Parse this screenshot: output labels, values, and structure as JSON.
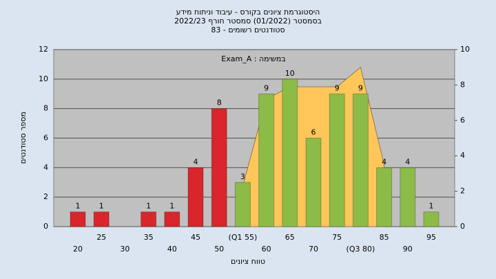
{
  "chart_data": {
    "type": "bar",
    "title": [
      "היסטוגרמת ציונים בקורס - עיבוד וניתוח מידע",
      "בסמסטר (01/2022)  סמסטר חורף 2022/23",
      "סטודנטים רשומים - 83"
    ],
    "annotation": "במשימה : Exam_A",
    "x_label": "טווח ציונים",
    "y_label": "מספר סטודנטים",
    "categories": [
      "20",
      "25",
      "30",
      "35",
      "40",
      "45",
      "50",
      "(Q1 55)",
      "60",
      "65",
      "70",
      "75",
      "(Q3 80)",
      "85",
      "90",
      "95"
    ],
    "values": [
      1,
      1,
      0,
      1,
      1,
      4,
      8,
      3,
      9,
      10,
      6,
      9,
      9,
      4,
      4,
      1
    ],
    "value_labels": [
      "1",
      "1",
      null,
      "1",
      "1",
      "4",
      "8",
      "3",
      "9",
      "10",
      "6",
      "9",
      "9",
      "4",
      "4",
      "1"
    ],
    "colors": [
      "#d8262c",
      "#d8262c",
      "#d8262c",
      "#d8262c",
      "#d8262c",
      "#d8262c",
      "#d8262c",
      "#8cbb48",
      "#8cbb48",
      "#8cbb48",
      "#8cbb48",
      "#8cbb48",
      "#8cbb48",
      "#8cbb48",
      "#8cbb48",
      "#8cbb48"
    ],
    "area": {
      "color": "#ffc65a",
      "axis": "y2",
      "values": [
        null,
        null,
        null,
        null,
        null,
        null,
        null,
        2.3,
        7.2,
        7.9,
        7.9,
        7.9,
        9.0,
        3.5,
        null,
        null
      ]
    },
    "ylim": [
      0,
      12
    ],
    "yticks": [
      0,
      2,
      4,
      6,
      8,
      10,
      12
    ],
    "y2lim": [
      0,
      10
    ],
    "y2ticks": [
      0,
      2,
      4,
      6,
      8,
      10
    ],
    "grid": true
  }
}
